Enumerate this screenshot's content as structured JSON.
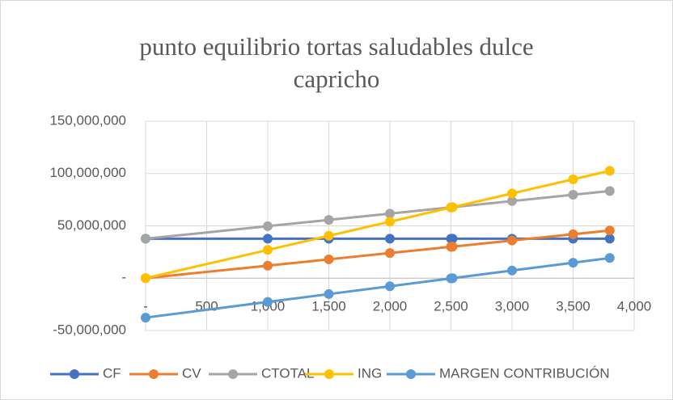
{
  "chart_data": {
    "type": "line",
    "title": "punto equilibrio tortas saludables dulce capricho",
    "x": [
      0,
      1000,
      1500,
      2000,
      2500,
      2513,
      3000,
      3500,
      3800
    ],
    "series": [
      {
        "name": "CF",
        "color": "#4472c4",
        "values": [
          37700000,
          37700000,
          37700000,
          37700000,
          37700000,
          37700000,
          37700000,
          37700000,
          37700000
        ]
      },
      {
        "name": "CV",
        "color": "#ed7d31",
        "values": [
          0,
          12000000,
          18000000,
          24000000,
          30000000,
          30156000,
          36000000,
          42000000,
          45600000
        ]
      },
      {
        "name": "CTOTAL",
        "color": "#a5a5a5",
        "values": [
          37700000,
          49700000,
          55700000,
          61700000,
          67700000,
          67856000,
          73700000,
          79700000,
          83300000
        ]
      },
      {
        "name": "ING",
        "color": "#ffc000",
        "values": [
          0,
          27000000,
          40500000,
          54000000,
          67500000,
          67851000,
          81000000,
          94500000,
          102600000
        ]
      },
      {
        "name": "MARGEN CONTRIBUCIÓN",
        "color": "#5b9bd5",
        "values": [
          -37700000,
          -22700000,
          -15200000,
          -7700000,
          -200000,
          0,
          7300000,
          14800000,
          19300000
        ]
      }
    ],
    "xlim": [
      0,
      4000
    ],
    "xticks": [
      {
        "value": 0,
        "label": "-"
      },
      500,
      {
        "value": 1000,
        "label": "1,000"
      },
      {
        "value": 1500,
        "label": "1,500"
      },
      {
        "value": 2000,
        "label": "2,000"
      },
      {
        "value": 2500,
        "label": "2,500"
      },
      {
        "value": 3000,
        "label": "3,000"
      },
      {
        "value": 3500,
        "label": "3,500"
      },
      {
        "value": 4000,
        "label": "4,000"
      }
    ],
    "ylim": [
      -50000000,
      150000000
    ],
    "yticks": [
      {
        "value": -50000000,
        "label": "-50,000,000"
      },
      {
        "value": 0,
        "label": "-"
      },
      {
        "value": 50000000,
        "label": "50,000,000"
      },
      {
        "value": 100000000,
        "label": "100,000,000"
      },
      {
        "value": 150000000,
        "label": "150,000,000"
      }
    ],
    "grid": true,
    "legend": "bottom"
  }
}
